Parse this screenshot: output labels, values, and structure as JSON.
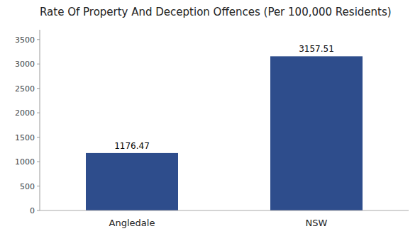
{
  "chart_data": {
    "type": "bar",
    "title": "Rate Of Property And Deception Offences (Per 100,000 Residents)",
    "categories": [
      "Angledale",
      "NSW"
    ],
    "values": [
      1176.47,
      3157.51
    ],
    "color": "#2e4d8c",
    "ylim": [
      0,
      3700
    ],
    "yticks": [
      0,
      500,
      1000,
      1500,
      2000,
      2500,
      3000,
      3500
    ],
    "grid": false,
    "data_labels": true
  }
}
